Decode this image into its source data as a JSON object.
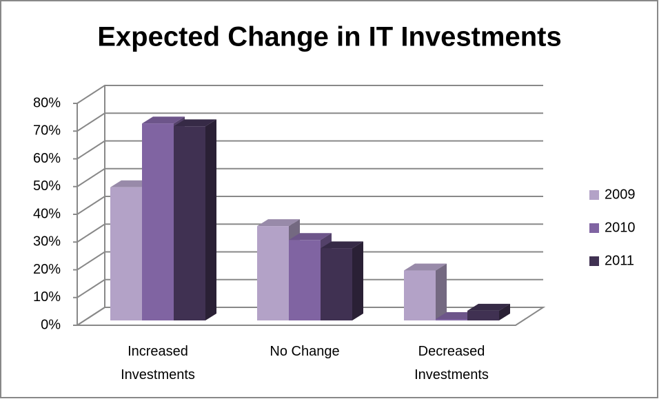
{
  "chart_data": {
    "type": "bar3d",
    "title": "Expected Change in IT Investments",
    "categories": [
      "Increased Investments",
      "No Change",
      "Decreased Investments"
    ],
    "series": [
      {
        "name": "2009",
        "color": "#b3a2c7",
        "values": [
          48,
          34,
          18
        ]
      },
      {
        "name": "2010",
        "color": "#8064a2",
        "values": [
          71,
          29,
          0.5
        ]
      },
      {
        "name": "2011",
        "color": "#403152",
        "values": [
          70,
          26,
          3.5
        ]
      }
    ],
    "ylim": [
      0,
      80
    ],
    "yticks": [
      {
        "value": 0,
        "label": "0%"
      },
      {
        "value": 10,
        "label": "10%"
      },
      {
        "value": 20,
        "label": "20%"
      },
      {
        "value": 30,
        "label": "30%"
      },
      {
        "value": 40,
        "label": "40%"
      },
      {
        "value": 50,
        "label": "50%"
      },
      {
        "value": 60,
        "label": "60%"
      },
      {
        "value": 70,
        "label": "70%"
      },
      {
        "value": 80,
        "label": "80%"
      }
    ],
    "grid": true,
    "legend": "right"
  }
}
